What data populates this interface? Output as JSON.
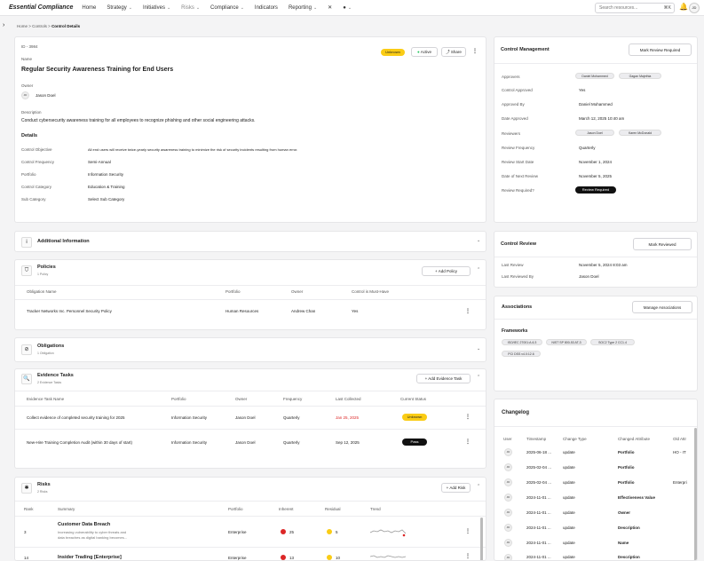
{
  "nav": {
    "brand": "Essential Compliance",
    "items": [
      "Home",
      "Strategy",
      "Initiatives",
      "Risks",
      "Compliance",
      "Indicators",
      "Reporting"
    ],
    "search_placeholder": "Search resources...",
    "kbd": "⌘K",
    "user_initials": "JD"
  },
  "breadcrumb": [
    "Home",
    "Controls",
    "Control Details"
  ],
  "control": {
    "id": "ID - 3984",
    "name_label": "Name",
    "name": "Regular Security Awareness Training for End Users",
    "status": "Unknown",
    "active": "Active",
    "share": "Share",
    "owner_label": "Owner",
    "owner": "Jason Doel",
    "owner_initials": "JD",
    "desc_label": "Description",
    "description": "Conduct cybersecurity awareness training for all employees to recognize phishing and other social engineering attacks.",
    "details_label": "Details",
    "details": [
      {
        "label": "Control Objective",
        "value": "All end users will receive twice-yearly security awareness training to minimize the risk of security incidents resulting from human error."
      },
      {
        "label": "Control Frequency",
        "value": "Semi-Annual"
      },
      {
        "label": "Portfolio",
        "value": "Information Security"
      },
      {
        "label": "Control Category",
        "value": "Education & Training"
      },
      {
        "label": "Sub Category",
        "value": "Select Sub Category"
      }
    ]
  },
  "additional": {
    "title": "Additional Information"
  },
  "policies": {
    "title": "Policies",
    "count": "1 Policy",
    "add": "Add Policy",
    "headers": [
      "Obligation Name",
      "Portfolio",
      "Owner",
      "Control is Must-Have"
    ],
    "rows": [
      [
        "Tracker Networks Inc. Personnel Security Policy",
        "Human Resources",
        "Andrew Chan",
        "Yes"
      ]
    ]
  },
  "obligations": {
    "title": "Obligations",
    "count": "1 Obligation"
  },
  "evidence": {
    "title": "Evidence Tasks",
    "count": "2 Evidence Tasks",
    "add": "Add Evidence Task",
    "headers": [
      "Evidence Task Name",
      "Portfolio",
      "Owner",
      "Frequency",
      "Last Collected",
      "Current Status"
    ],
    "rows": [
      {
        "name": "Collect evidence of completed security training for 2025",
        "portfolio": "Information Security",
        "owner": "Jason Doel",
        "freq": "Quarterly",
        "last": "Jan 25, 2025",
        "status": "Unknown"
      },
      {
        "name": "New-Hire Training Completion Audit (within 30 days of start)",
        "portfolio": "Information Security",
        "owner": "Jason Doel",
        "freq": "Quarterly",
        "last": "Sep 12, 2025",
        "status": "Pass"
      }
    ]
  },
  "risks": {
    "title": "Risks",
    "count": "2 Risks",
    "add": "Add Risk",
    "headers": [
      "Rank",
      "Summary",
      "Portfolio",
      "Inherent",
      "Residual",
      "Trend"
    ],
    "rows": [
      {
        "rank": "3",
        "title": "Customer Data Breach",
        "desc1": "Increasing vulnerability to cyber threats and",
        "desc2": "data breaches as digital banking becomes...",
        "portfolio": "Enterprise",
        "inherent": "25",
        "residual": "5"
      },
      {
        "rank": "14",
        "title": "Insider Trading [Enterprise]",
        "desc1": "",
        "desc2": "",
        "portfolio": "Enterprise",
        "inherent": "13",
        "residual": "10"
      }
    ]
  },
  "management": {
    "title": "Control Management",
    "button": "Mark Review Required",
    "fields": [
      {
        "label": "Approvers",
        "value": ""
      },
      {
        "label": "Control Approved",
        "value": "Yes"
      },
      {
        "label": "Approved By",
        "value": "Daniel Mohammed"
      },
      {
        "label": "Date Approved",
        "value": "March 12, 2025 10:40 am"
      },
      {
        "label": "Reviewers",
        "value": ""
      },
      {
        "label": "Review Frequency",
        "value": "Quarterly"
      },
      {
        "label": "Review Start Date",
        "value": "November 1, 2024"
      },
      {
        "label": "Date of Next Review",
        "value": "November 5, 2025"
      },
      {
        "label": "Review Required?",
        "value": ""
      }
    ],
    "approvers": [
      "Daniel Mohammed",
      "Gagan Majethia"
    ],
    "reviewers": [
      "Jason Doel",
      "Karen McDonald"
    ],
    "review_required": "Review Required"
  },
  "review": {
    "title": "Control Review",
    "button": "Mark Reviewed",
    "fields": [
      {
        "label": "Last Review",
        "value": "November 5, 2024 8:03 am"
      },
      {
        "label": "Last Reviewed By",
        "value": "Jason Doel"
      }
    ]
  },
  "associations": {
    "title": "Associations",
    "button": "Manage Associations",
    "frameworks_label": "Frameworks",
    "frameworks": [
      "ISO/IEC 27001:A.6.3",
      "NIST SP 800-53 AT-3",
      "SOC2 Type 2 CC1.4",
      "PCI DSS v4.0:12.6"
    ]
  },
  "changelog": {
    "title": "Changelog",
    "headers": [
      "User",
      "Timestamp",
      "Change Type",
      "Changed Attribute",
      "Old Attr"
    ],
    "rows": [
      [
        "JD",
        "2025-06-18 ...",
        "update",
        "Portfolio",
        "HO - IT"
      ],
      [
        "JD",
        "2025-02-04 ...",
        "update",
        "Portfolio",
        ""
      ],
      [
        "JD",
        "2025-02-04 ...",
        "update",
        "Portfolio",
        "Enterpri"
      ],
      [
        "JD",
        "2024-11-01 ...",
        "update",
        "Effectiveness Value",
        ""
      ],
      [
        "JD",
        "2024-11-01 ...",
        "update",
        "Owner",
        ""
      ],
      [
        "JD",
        "2024-11-01 ...",
        "update",
        "Description",
        ""
      ],
      [
        "JD",
        "2024-11-01 ...",
        "update",
        "Name",
        ""
      ],
      [
        "JD",
        "2024-11-01 ...",
        "update",
        "Description",
        ""
      ]
    ]
  }
}
